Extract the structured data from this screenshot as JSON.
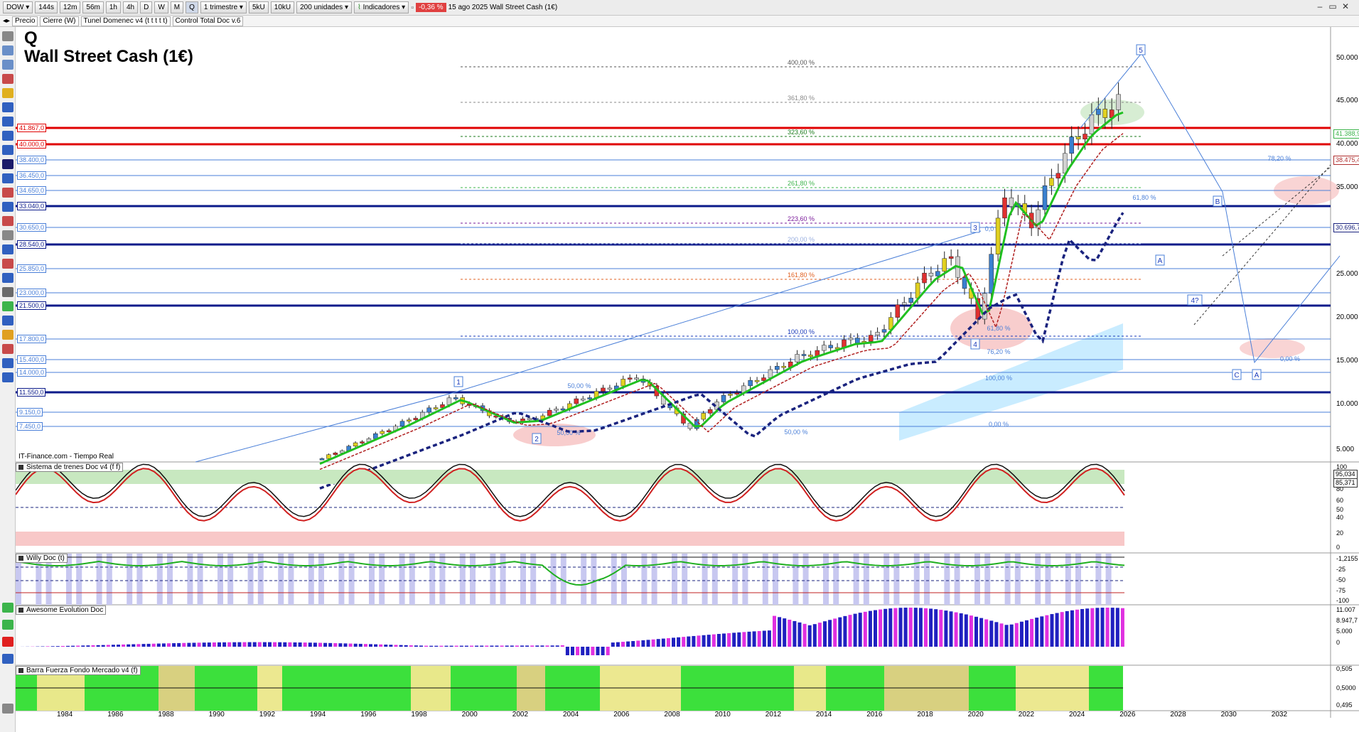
{
  "toolbar": {
    "symbol": "DOW",
    "timeframes": [
      "144s",
      "12m",
      "56m",
      "1h",
      "4h",
      "D",
      "W",
      "M",
      "Q"
    ],
    "period": "1 trimestre",
    "volumes": [
      "5kU",
      "10kU"
    ],
    "units": "200 unidades",
    "indicators_label": "Indicadores",
    "change": "-0,36 %",
    "date_title": "15 ago 2025 Wall Street Cash (1€)"
  },
  "subtoolbar": [
    "Precio",
    "Cierre (W)",
    "Tunel Domenec v4 (t t t t t)",
    "Control Total Doc v.6"
  ],
  "main": {
    "title_letter": "Q",
    "title": "Wall Street Cash (1€)",
    "source": "IT-Finance.com - Tiempo Real",
    "left_levels": [
      {
        "text": "41.867,0",
        "color": "#e00000"
      },
      {
        "text": "40.000,0",
        "color": "#e00000"
      },
      {
        "text": "38.400,0",
        "color": "#4a7fd8"
      },
      {
        "text": "36.450,0",
        "color": "#4a7fd8"
      },
      {
        "text": "34.650,0",
        "color": "#4a7fd8"
      },
      {
        "text": "33.040,0",
        "color": "#0a1a8a"
      },
      {
        "text": "30.650,0",
        "color": "#4a7fd8"
      },
      {
        "text": "28.540,0",
        "color": "#0a1a8a"
      },
      {
        "text": "25.850,0",
        "color": "#4a7fd8"
      },
      {
        "text": "23.000,0",
        "color": "#4a7fd8"
      },
      {
        "text": "21.500,0",
        "color": "#0a1a8a"
      },
      {
        "text": "17.800,0",
        "color": "#4a7fd8"
      },
      {
        "text": "15.400,0",
        "color": "#4a7fd8"
      },
      {
        "text": "14.000,0",
        "color": "#4a7fd8"
      },
      {
        "text": "11.550,0",
        "color": "#0a1a8a"
      },
      {
        "text": "9.150,0",
        "color": "#4a7fd8"
      },
      {
        "text": "7.450,0",
        "color": "#4a7fd8"
      }
    ],
    "right_axis": [
      "50.000",
      "45.000",
      "40.000",
      "35.000",
      "30.000",
      "25.000",
      "20.000",
      "15.000",
      "10.000",
      "5.000"
    ],
    "right_tags": [
      {
        "text": "41.388,9",
        "color": "#3cb44b"
      },
      {
        "text": "38.475,4",
        "color": "#b03030"
      },
      {
        "text": "30.696,7",
        "color": "#1a237e"
      }
    ],
    "fib_labels": [
      "400,00 %",
      "361,80 %",
      "323,60 %",
      "261,80 %",
      "223,60 %",
      "200,00 %",
      "161,80 %",
      "100,00 %"
    ],
    "retr_labels": [
      "50,00 %",
      "61,80 %",
      "76,20 %",
      "100,00 %",
      "0,00 %",
      "50,00 %",
      "61,80 %",
      "78,20 %",
      "0,00 %",
      "50,00 %",
      "0,0"
    ],
    "waves": [
      "1",
      "2",
      "3",
      "4",
      "5",
      "A",
      "B",
      "C",
      "A",
      "4?"
    ]
  },
  "panels": {
    "trenes": {
      "label": "Sistema de trenes Doc v4 (f f)",
      "axis": [
        "100",
        "80",
        "60",
        "50",
        "40",
        "20",
        "0"
      ],
      "tags": [
        "95,034",
        "85,371"
      ]
    },
    "willy": {
      "label": "Willy Doc (t)",
      "axis": [
        "-1,2155",
        "-25",
        "-50",
        "-75",
        "-100"
      ]
    },
    "awesome": {
      "label": "Awesome Evolution Doc",
      "axis": [
        "11.007",
        "8.947,7",
        "5.000",
        "0"
      ]
    },
    "barra": {
      "label": "Barra Fuerza Fondo Mercado v4 (f)",
      "axis": [
        "0,505",
        "0,5000",
        "0,495"
      ]
    }
  },
  "x_axis": [
    "1984",
    "1986",
    "1988",
    "1990",
    "1992",
    "1994",
    "1996",
    "1998",
    "2000",
    "2002",
    "2004",
    "2006",
    "2008",
    "2010",
    "2012",
    "2014",
    "2016",
    "2018",
    "2020",
    "2022",
    "2024",
    "2026",
    "2028",
    "2030",
    "2032"
  ]
}
